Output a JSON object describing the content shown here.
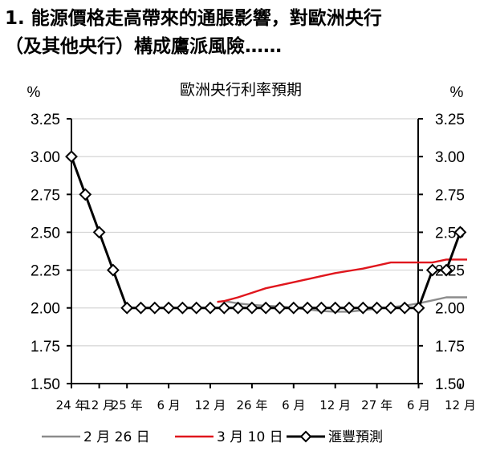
{
  "headline": {
    "line1": "1. 能源價格走高帶來的通脹影響，對歐洲央行",
    "line2": "（及其他央行）構成鷹派風險……"
  },
  "chart_data": {
    "type": "line",
    "title": "歐洲央行利率預期",
    "ylabel_left": "%",
    "ylabel_right": "%",
    "ylim": [
      1.5,
      3.25
    ],
    "yticks": [
      "3.25",
      "3.00",
      "2.75",
      "2.50",
      "2.25",
      "2.00",
      "1.75",
      "1.50"
    ],
    "ytick_values": [
      3.25,
      3.0,
      2.75,
      2.5,
      2.25,
      2.0,
      1.75,
      1.5
    ],
    "x_tick_labels": [
      "24 年",
      "12 月",
      "25 年",
      "6 月",
      "12 月",
      "26 年",
      "6 月",
      "12 月",
      "27 年",
      "6 月",
      "12 月"
    ],
    "x_tick_index": [
      0,
      2,
      4,
      7,
      10,
      13,
      16,
      19,
      22,
      25,
      28
    ],
    "x_max_index": 28.5,
    "grid": "horizontal",
    "legend_position": "bottom",
    "series": [
      {
        "name": "2 月 26 日",
        "color": "#8c8c8c",
        "points": [
          [
            10.5,
            2.04
          ],
          [
            11,
            2.045
          ],
          [
            12,
            2.03
          ],
          [
            13,
            2.02
          ],
          [
            14,
            2.015
          ],
          [
            15,
            2.01
          ],
          [
            16,
            2.0
          ],
          [
            17,
            1.99
          ],
          [
            18,
            1.98
          ],
          [
            19,
            1.975
          ],
          [
            20,
            1.975
          ],
          [
            21,
            1.985
          ],
          [
            22,
            1.995
          ],
          [
            23,
            2.005
          ],
          [
            24,
            2.015
          ],
          [
            25,
            2.03
          ],
          [
            26,
            2.05
          ],
          [
            27,
            2.07
          ],
          [
            28,
            2.07
          ],
          [
            28.5,
            2.07
          ]
        ]
      },
      {
        "name": "3 月 10 日",
        "color": "#e0161d",
        "points": [
          [
            10.5,
            2.04
          ],
          [
            11,
            2.045
          ],
          [
            12,
            2.07
          ],
          [
            13,
            2.1
          ],
          [
            14,
            2.13
          ],
          [
            15,
            2.15
          ],
          [
            16,
            2.17
          ],
          [
            17,
            2.19
          ],
          [
            18,
            2.21
          ],
          [
            19,
            2.23
          ],
          [
            20,
            2.245
          ],
          [
            21,
            2.26
          ],
          [
            22,
            2.28
          ],
          [
            23,
            2.3
          ],
          [
            24,
            2.3
          ],
          [
            25,
            2.3
          ],
          [
            26,
            2.3
          ],
          [
            27,
            2.32
          ],
          [
            28,
            2.32
          ],
          [
            28.5,
            2.32
          ]
        ]
      },
      {
        "name": "滙豐預測",
        "color": "#000000",
        "marker": "diamond",
        "points": [
          [
            0,
            3.0
          ],
          [
            1,
            2.75
          ],
          [
            2,
            2.5
          ],
          [
            3,
            2.25
          ],
          [
            4,
            2.0
          ],
          [
            5,
            2.0
          ],
          [
            6,
            2.0
          ],
          [
            7,
            2.0
          ],
          [
            8,
            2.0
          ],
          [
            9,
            2.0
          ],
          [
            10,
            2.0
          ],
          [
            11,
            2.0
          ],
          [
            12,
            2.0
          ],
          [
            13,
            2.0
          ],
          [
            14,
            2.0
          ],
          [
            15,
            2.0
          ],
          [
            16,
            2.0
          ],
          [
            17,
            2.0
          ],
          [
            18,
            2.0
          ],
          [
            19,
            2.0
          ],
          [
            20,
            2.0
          ],
          [
            21,
            2.0
          ],
          [
            22,
            2.0
          ],
          [
            23,
            2.0
          ],
          [
            24,
            2.0
          ],
          [
            25,
            2.0
          ],
          [
            26,
            2.25
          ],
          [
            27,
            2.25
          ],
          [
            28,
            2.5
          ]
        ]
      }
    ]
  }
}
